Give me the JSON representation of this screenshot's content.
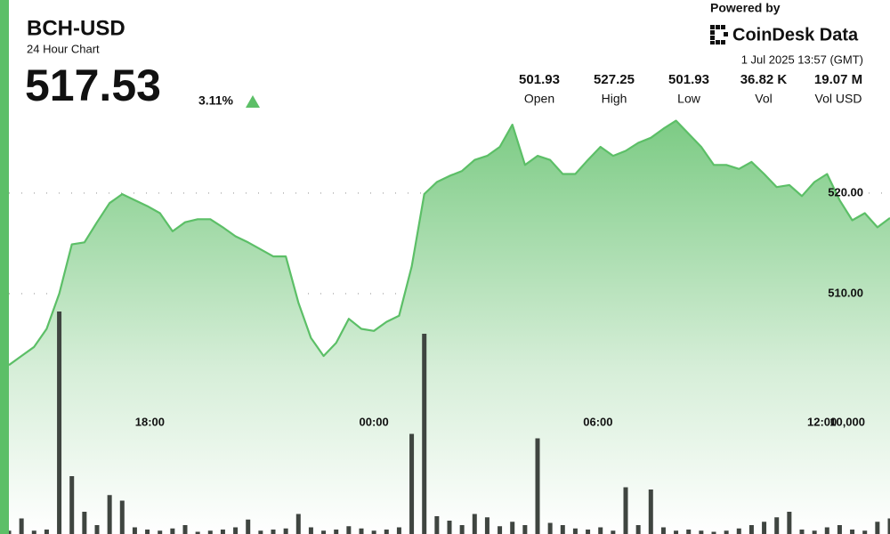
{
  "chart_data": {
    "type": "line",
    "title": "BCH-USD",
    "subtitle": "24 Hour Chart",
    "series": [
      {
        "color": "#5cbf67",
        "values": [
          502.9,
          503.8,
          504.7,
          506.5,
          510.0,
          514.9,
          515.1,
          517.1,
          519.0,
          519.9,
          519.3,
          518.7,
          518.0,
          516.2,
          517.1,
          517.4,
          517.4,
          516.6,
          515.7,
          515.1,
          514.4,
          513.7,
          513.7,
          509.1,
          505.6,
          503.8,
          505.1,
          507.5,
          506.5,
          506.3,
          507.2,
          507.8,
          512.7,
          519.9,
          521.1,
          521.7,
          522.2,
          523.3,
          523.7,
          524.6,
          526.8,
          522.8,
          523.7,
          523.3,
          521.9,
          521.9,
          523.3,
          524.6,
          523.7,
          524.2,
          525.0,
          525.5,
          526.4,
          527.2,
          525.9,
          524.6,
          522.8,
          522.8,
          522.4,
          523.1,
          521.9,
          520.6,
          520.8,
          519.7,
          521.1,
          521.9,
          519.3,
          517.3,
          518.0,
          516.6,
          517.53
        ]
      },
      {
        "type": "bar",
        "axis": "y2",
        "color": "#3f4540",
        "values": [
          300,
          1400,
          300,
          400,
          20000,
          5200,
          2000,
          800,
          3500,
          3000,
          600,
          400,
          300,
          500,
          800,
          200,
          300,
          400,
          600,
          1300,
          300,
          400,
          500,
          1800,
          600,
          300,
          400,
          700,
          500,
          300,
          400,
          600,
          9000,
          18000,
          1600,
          1200,
          800,
          1800,
          1500,
          700,
          1100,
          800,
          8600,
          1000,
          800,
          500,
          400,
          600,
          300,
          4200,
          800,
          4000,
          600,
          300,
          400,
          300,
          200,
          300,
          500,
          800,
          1100,
          1500,
          2000,
          400,
          300,
          600,
          800,
          400,
          300,
          1100,
          1400
        ]
      }
    ],
    "xticks": [
      {
        "value": 11.2,
        "label": "18:00"
      },
      {
        "value": 29,
        "label": "00:00"
      },
      {
        "value": 46.8,
        "label": "06:00"
      },
      {
        "value": 64.6,
        "label": "12:00"
      }
    ],
    "ylim": [
      486.1,
      530.35
    ],
    "yticks": [
      {
        "value": 510,
        "label": "510.00"
      },
      {
        "value": 520,
        "label": "520.00"
      }
    ],
    "y2lim": [
      0,
      40000
    ],
    "y2ticks": [
      {
        "value": 10000,
        "label": "10,000"
      }
    ],
    "grid": true
  },
  "quote": {
    "last": "517.53",
    "change": "3.11%"
  },
  "stats": [
    {
      "value": "501.93",
      "label": "Open"
    },
    {
      "value": "527.25",
      "label": "High"
    },
    {
      "value": "501.93",
      "label": "Low"
    },
    {
      "value": "36.82 K",
      "label": "Vol"
    },
    {
      "value": "19.07 M",
      "label": "Vol USD"
    }
  ],
  "branding": {
    "powered_by": "Powered by",
    "name": "CoinDesk Data",
    "timestamp": "1 Jul 2025 13:57 (GMT)"
  }
}
